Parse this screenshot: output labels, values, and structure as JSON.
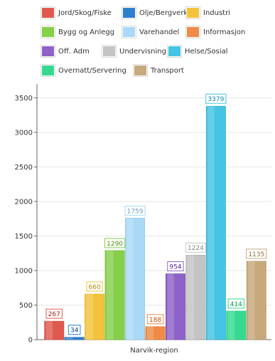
{
  "chart_data": {
    "type": "bar",
    "categories": [
      "Narvik-region"
    ],
    "xlabel": "",
    "ylabel": "",
    "ylim": [
      0,
      3700
    ],
    "yticks": [
      0,
      500,
      1000,
      1500,
      2000,
      2500,
      3000,
      3500
    ],
    "grid": true,
    "legend_position": "top",
    "series": [
      {
        "name": "Jord/Skog/Fiske",
        "values": [
          267
        ],
        "color": "#e0594f"
      },
      {
        "name": "Olje/Bergverk",
        "values": [
          34
        ],
        "color": "#2f7fd0"
      },
      {
        "name": "Industri",
        "values": [
          660
        ],
        "color": "#f3c43b"
      },
      {
        "name": "Bygg og Anlegg",
        "values": [
          1290
        ],
        "color": "#86cf4a"
      },
      {
        "name": "Varehandel",
        "values": [
          1759
        ],
        "color": "#a9d9f7"
      },
      {
        "name": "Informasjon",
        "values": [
          188
        ],
        "color": "#f08a45"
      },
      {
        "name": "Off. Adm",
        "values": [
          954
        ],
        "color": "#8e62c9"
      },
      {
        "name": "Undervisning",
        "values": [
          1224
        ],
        "color": "#c4c4c4"
      },
      {
        "name": "Helse/Sosial",
        "values": [
          3379
        ],
        "color": "#45c4e4"
      },
      {
        "name": "Overnatt/Servering",
        "values": [
          414
        ],
        "color": "#36d98f"
      },
      {
        "name": "Transport",
        "values": [
          1135
        ],
        "color": "#c7a97b"
      }
    ]
  }
}
